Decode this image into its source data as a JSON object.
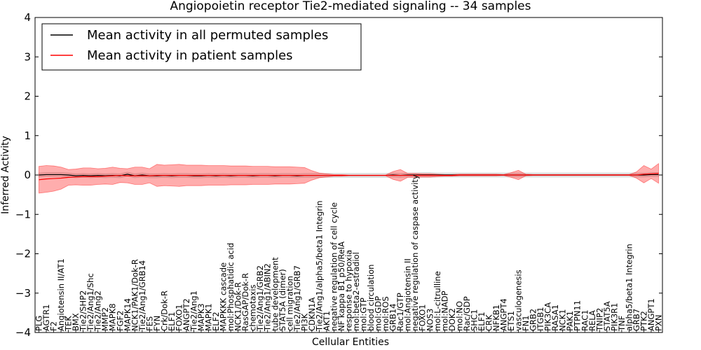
{
  "chart_data": {
    "type": "line",
    "title": "Angiopoietin receptor Tie2-mediated signaling -- 34 samples",
    "xlabel": "Cellular Entities",
    "ylabel": "Inferred Activity",
    "ylim": [
      -4,
      4
    ],
    "yticks": [
      "−4",
      "−3",
      "−2",
      "−1",
      "0",
      "1",
      "2",
      "3",
      "4"
    ],
    "grid": false,
    "legend_position": "top-left",
    "categories": [
      "PLG",
      "AGTR1",
      "F2",
      "Angiotensin II/AT1",
      "TEK",
      "BMX",
      "Tie2/SHP2",
      "Tie2/Ang1/Shc",
      "Tie2/Ang2",
      "MMP2",
      "MAPK8",
      "FGF2",
      "MAPK14",
      "NCK1/PAK1/Dok-R",
      "Tie2/Ang1/GRB14",
      "FES",
      "FYN",
      "Crk/Dok-R",
      "ELF1",
      "FOXO1",
      "ANGPT2",
      "Tie2/Ang1",
      "MAPK3",
      "MAPK1",
      "ELF2",
      "MAPKKK cascade",
      "mol:Phosphatidic acid",
      "NCK1/Dok-R",
      "RasGAP/Dok-R",
      "chemotaxis",
      "Tie2/Ang1/GRB2",
      "Tie2/Ang1/ABIN2",
      "tube development",
      "STAT5A (dimer)",
      "cell migration",
      "Tie2/Ang1/GRB7",
      "PI3K",
      "CDKN1A",
      "Tie2/Ang1/alpha5/beta1 Integrin",
      "AKT1",
      "negative regulation of cell cycle",
      "NF kappa B1 p50/RelA",
      "response to hypoxia",
      "mol:beta2-estradiol",
      "mol:GTP",
      "blood circulation",
      "mol:GDP",
      "mol:ROS",
      "GRB14",
      "Rac1/GTP",
      "mol:Angiotensin II",
      "negative regulation of caspase activity",
      "FOXO1",
      "NOS3",
      "mol:L-citrulline",
      "mol:NADP",
      "DOK2",
      "mol:NO",
      "Rac/GDP",
      "SHC1",
      "ELF1",
      "CRK",
      "NFKB1",
      "ANGPT4",
      "ETS1",
      "vasculogenesis",
      "FN1",
      "GRB2",
      "ITGB1",
      "PIK3CA",
      "RASA1",
      "NCK1",
      "PAK1",
      "PTPN11",
      "RAC1",
      "RELA",
      "TNIP2",
      "STAT5A",
      "PIK3R1",
      "TNF",
      "alpha5/beta1 Integrin",
      "GRB7",
      "PTK2",
      "ANGPT1",
      "PXN"
    ],
    "series": [
      {
        "name": "Mean activity in all permuted samples",
        "color": "#000000",
        "values": [
          0.0,
          0.01,
          0.01,
          0.01,
          0.0,
          -0.02,
          -0.01,
          -0.02,
          -0.01,
          -0.02,
          -0.01,
          -0.02,
          0.02,
          -0.02,
          0.0,
          -0.02,
          -0.02,
          -0.01,
          -0.02,
          -0.01,
          -0.01,
          -0.02,
          -0.02,
          -0.01,
          -0.02,
          -0.01,
          -0.02,
          -0.01,
          -0.01,
          -0.02,
          -0.01,
          -0.01,
          -0.02,
          -0.01,
          -0.01,
          -0.02,
          -0.01,
          -0.01,
          -0.01,
          -0.01,
          -0.01,
          -0.01,
          -0.01,
          -0.01,
          -0.01,
          -0.01,
          -0.01,
          -0.01,
          0.0,
          -0.01,
          0.0,
          0.0,
          0.0,
          0.0,
          0.0,
          0.0,
          0.0,
          0.0,
          0.0,
          0.0,
          0.0,
          0.0,
          0.0,
          0.0,
          0.0,
          0.0,
          0.0,
          0.0,
          0.0,
          0.0,
          0.0,
          0.0,
          0.0,
          0.0,
          0.0,
          0.0,
          0.0,
          0.0,
          0.0,
          0.0,
          0.0,
          0.0,
          0.0,
          0.01,
          0.01
        ],
        "band": [
          0.05,
          0.05,
          0.05,
          0.05,
          0.05,
          0.05,
          0.05,
          0.05,
          0.05,
          0.05,
          0.05,
          0.05,
          0.05,
          0.05,
          0.05,
          0.05,
          0.05,
          0.05,
          0.05,
          0.05,
          0.05,
          0.05,
          0.05,
          0.05,
          0.05,
          0.05,
          0.05,
          0.05,
          0.05,
          0.05,
          0.05,
          0.05,
          0.05,
          0.05,
          0.05,
          0.05,
          0.05,
          0.05,
          0.05,
          0.05,
          0.05,
          0.05,
          0.05,
          0.05,
          0.05,
          0.05,
          0.05,
          0.05,
          0.05,
          0.05,
          0.05,
          0.05,
          0.06,
          0.06,
          0.05,
          0.05,
          0.05,
          0.05,
          0.05,
          0.05,
          0.05,
          0.05,
          0.05,
          0.05,
          0.05,
          0.05,
          0.05,
          0.05,
          0.05,
          0.05,
          0.05,
          0.05,
          0.05,
          0.05,
          0.05,
          0.05,
          0.05,
          0.05,
          0.05,
          0.05,
          0.05,
          0.05,
          0.05,
          0.05,
          0.05
        ]
      },
      {
        "name": "Mean activity in patient samples",
        "color": "#ff0000",
        "values": [
          -0.12,
          -0.1,
          -0.09,
          -0.08,
          -0.06,
          -0.05,
          -0.04,
          -0.04,
          -0.04,
          -0.03,
          -0.02,
          -0.01,
          -0.02,
          -0.02,
          -0.02,
          -0.02,
          -0.01,
          -0.01,
          -0.01,
          -0.01,
          -0.01,
          -0.01,
          -0.01,
          -0.01,
          -0.01,
          -0.01,
          -0.01,
          -0.01,
          -0.01,
          -0.01,
          -0.01,
          -0.01,
          -0.01,
          -0.01,
          -0.01,
          -0.01,
          -0.01,
          -0.01,
          -0.01,
          -0.01,
          -0.01,
          -0.01,
          -0.01,
          -0.01,
          -0.01,
          -0.01,
          -0.01,
          -0.01,
          -0.01,
          -0.01,
          -0.01,
          -0.01,
          -0.01,
          -0.01,
          -0.01,
          -0.01,
          -0.01,
          0.0,
          0.0,
          0.0,
          0.0,
          0.0,
          0.0,
          0.0,
          0.0,
          0.0,
          0.0,
          0.0,
          0.0,
          0.0,
          0.0,
          0.0,
          0.0,
          0.0,
          0.0,
          0.0,
          0.0,
          0.0,
          0.0,
          0.0,
          0.0,
          0.0,
          0.02,
          0.03,
          0.04
        ],
        "band": [
          0.34,
          0.34,
          0.32,
          0.28,
          0.2,
          0.2,
          0.22,
          0.22,
          0.2,
          0.2,
          0.22,
          0.18,
          0.18,
          0.22,
          0.22,
          0.18,
          0.28,
          0.26,
          0.27,
          0.28,
          0.26,
          0.26,
          0.26,
          0.25,
          0.25,
          0.25,
          0.24,
          0.24,
          0.24,
          0.23,
          0.23,
          0.23,
          0.22,
          0.22,
          0.22,
          0.21,
          0.2,
          0.12,
          0.06,
          0.04,
          0.02,
          0.02,
          0.01,
          0.01,
          0.01,
          0.01,
          0.01,
          0.01,
          0.1,
          0.15,
          0.05,
          0.05,
          0.04,
          0.04,
          0.03,
          0.02,
          0.02,
          0.02,
          0.02,
          0.02,
          0.02,
          0.02,
          0.02,
          0.01,
          0.06,
          0.12,
          0.02,
          0.01,
          0.01,
          0.01,
          0.01,
          0.01,
          0.01,
          0.01,
          0.01,
          0.01,
          0.01,
          0.01,
          0.01,
          0.01,
          0.01,
          0.08,
          0.22,
          0.12,
          0.25
        ]
      }
    ]
  }
}
